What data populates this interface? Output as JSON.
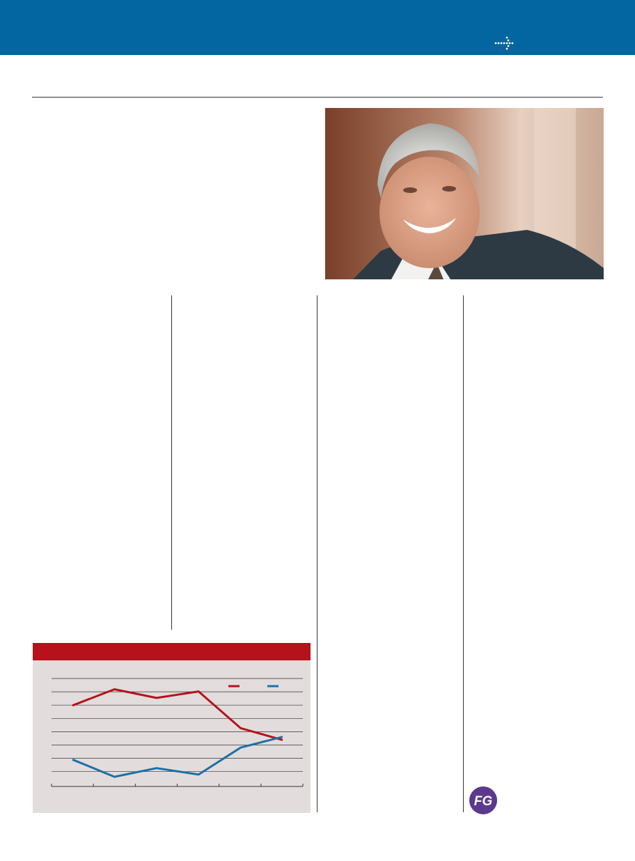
{
  "header": {
    "arrow_icon": "dotted-arrow-right-icon",
    "bar_color": "#0466a0"
  },
  "photo": {
    "subject": "portrait-photo"
  },
  "chart_data": {
    "type": "line",
    "x": [
      0,
      1,
      2,
      3,
      4,
      5
    ],
    "series": [
      {
        "color": "#b5121b",
        "values": [
          6.0,
          7.5,
          6.7,
          7.3,
          3.9,
          2.8
        ]
      },
      {
        "color": "#1f6fa6",
        "values": [
          1.0,
          -0.6,
          0.2,
          -0.4,
          2.1,
          3.1
        ]
      }
    ],
    "ylim": [
      -1.5,
      8.5
    ],
    "grid": true,
    "legend": "top-right",
    "header_color": "#b5121b"
  },
  "logo": {
    "text": "FG",
    "color": "#5b3a8e"
  }
}
